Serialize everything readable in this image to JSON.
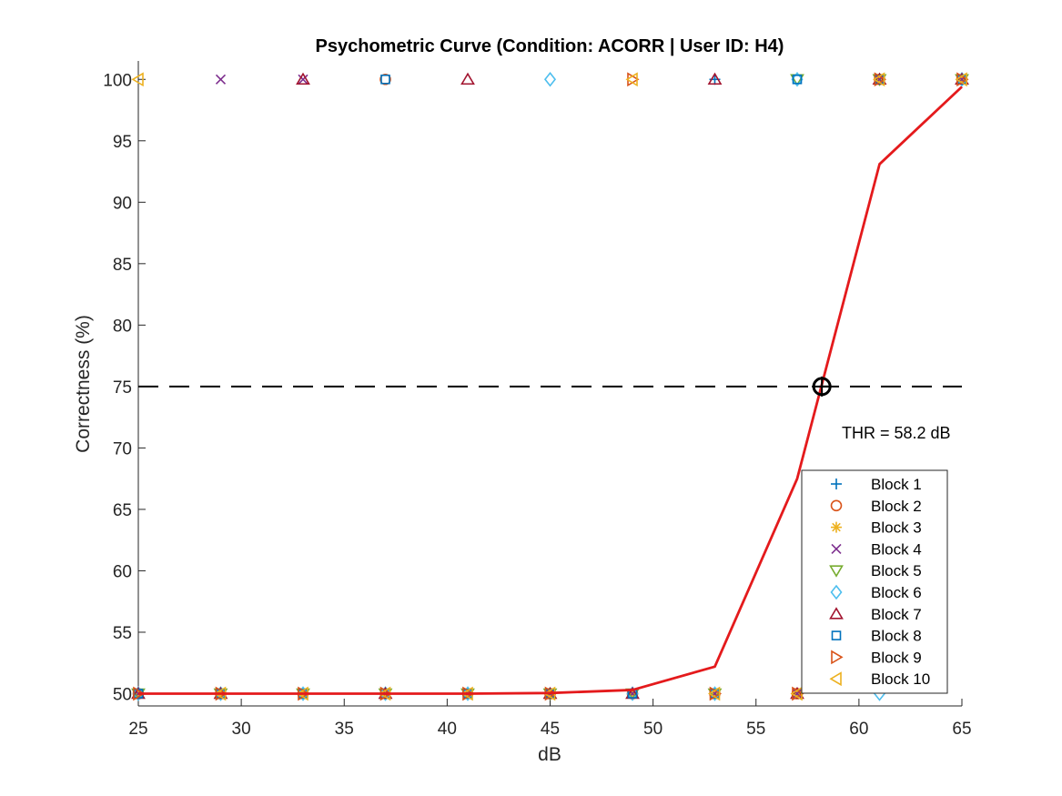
{
  "chart_data": {
    "type": "scatter",
    "title": "Psychometric Curve (Condition: ACORR | User ID: H4)",
    "xlabel": "dB",
    "ylabel": "Correctness (%)",
    "xlim": [
      25,
      65
    ],
    "ylim": [
      49,
      101.5
    ],
    "xticks": [
      25,
      30,
      35,
      40,
      45,
      50,
      55,
      60,
      65
    ],
    "yticks": [
      50,
      55,
      60,
      65,
      70,
      75,
      80,
      85,
      90,
      95,
      100
    ],
    "grid": false,
    "legend_position": "bottom-right",
    "levels": [
      25,
      29,
      33,
      37,
      41,
      45,
      49,
      53,
      57,
      61,
      65
    ],
    "series": [
      {
        "name": "Block 1",
        "marker": "plus",
        "color": "#0072BD",
        "y": [
          50,
          50,
          50,
          50,
          50,
          50,
          50,
          100,
          50,
          100,
          100
        ]
      },
      {
        "name": "Block 2",
        "marker": "circle",
        "color": "#D95319",
        "y": [
          50,
          50,
          50,
          100,
          50,
          50,
          50,
          50,
          50,
          100,
          100
        ]
      },
      {
        "name": "Block 3",
        "marker": "asterisk",
        "color": "#EDB120",
        "y": [
          50,
          50,
          50,
          50,
          50,
          50,
          50,
          50,
          50,
          100,
          100
        ]
      },
      {
        "name": "Block 4",
        "marker": "x",
        "color": "#7E2F8E",
        "y": [
          50,
          100,
          100,
          50,
          50,
          50,
          50,
          50,
          50,
          100,
          100
        ]
      },
      {
        "name": "Block 5",
        "marker": "triangle-down",
        "color": "#77AC30",
        "y": [
          50,
          50,
          50,
          50,
          50,
          50,
          50,
          50,
          100,
          100,
          100
        ]
      },
      {
        "name": "Block 6",
        "marker": "diamond",
        "color": "#4DBEEE",
        "y": [
          50,
          50,
          50,
          50,
          50,
          100,
          50,
          50,
          100,
          50,
          100
        ]
      },
      {
        "name": "Block 7",
        "marker": "triangle-up",
        "color": "#A2142F",
        "y": [
          50,
          50,
          100,
          50,
          100,
          50,
          50,
          100,
          50,
          100,
          100
        ]
      },
      {
        "name": "Block 8",
        "marker": "square",
        "color": "#0072BD",
        "y": [
          50,
          50,
          50,
          100,
          50,
          50,
          50,
          50,
          100,
          100,
          100
        ]
      },
      {
        "name": "Block 9",
        "marker": "triangle-right",
        "color": "#D95319",
        "y": [
          50,
          50,
          50,
          50,
          50,
          50,
          100,
          50,
          50,
          100,
          100
        ]
      },
      {
        "name": "Block 10",
        "marker": "triangle-left",
        "color": "#EDB120",
        "y": [
          100,
          50,
          50,
          50,
          50,
          50,
          100,
          50,
          50,
          100,
          100
        ]
      }
    ],
    "fit_curve": {
      "color": "#E41A1C",
      "x": [
        25,
        29,
        33,
        37,
        41,
        45,
        49,
        53,
        57,
        61,
        65
      ],
      "y": [
        50,
        50,
        50,
        50,
        50,
        50.05,
        50.3,
        52.2,
        67.5,
        93.1,
        99.4
      ]
    },
    "reference_line": {
      "y": 75,
      "style": "dashed",
      "color": "#000000"
    },
    "threshold": {
      "x": 58.2,
      "y": 75,
      "label": "THR = 58.2 dB",
      "color": "#000000"
    }
  }
}
